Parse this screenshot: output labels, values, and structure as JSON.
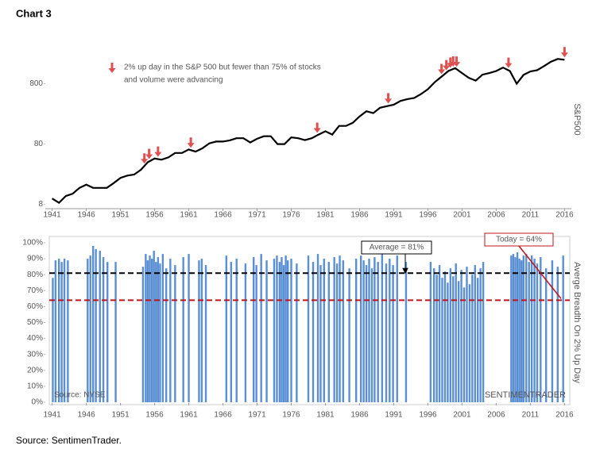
{
  "title": "Chart 3",
  "source": "Source: SentimenTrader.",
  "chart_data": [
    {
      "type": "line",
      "y_label": "S&P500",
      "log_scale": true,
      "color": "#000000",
      "legend_lines": [
        "2% up day in the S&P 500 but fewer than 75% of stocks",
        "and volume were advancing"
      ],
      "marker_color": "#e05050",
      "x": [
        1941,
        1942,
        1943,
        1944,
        1945,
        1946,
        1947,
        1948,
        1949,
        1950,
        1951,
        1952,
        1953,
        1954,
        1955,
        1956,
        1957,
        1958,
        1959,
        1960,
        1961,
        1962,
        1963,
        1964,
        1965,
        1966,
        1967,
        1968,
        1969,
        1970,
        1971,
        1972,
        1973,
        1974,
        1975,
        1976,
        1977,
        1978,
        1979,
        1980,
        1981,
        1982,
        1983,
        1984,
        1985,
        1986,
        1987,
        1988,
        1989,
        1990,
        1991,
        1992,
        1993,
        1994,
        1995,
        1996,
        1997,
        1998,
        1999,
        2000,
        2001,
        2002,
        2003,
        2004,
        2005,
        2006,
        2007,
        2008,
        2009,
        2010,
        2011,
        2012,
        2013,
        2014,
        2015,
        2016
      ],
      "values": [
        10,
        8.5,
        11,
        12,
        15,
        17,
        15,
        15,
        15,
        18,
        22,
        24,
        25,
        30,
        40,
        46,
        44,
        48,
        57,
        57,
        65,
        60,
        68,
        82,
        88,
        88,
        92,
        100,
        100,
        85,
        98,
        108,
        108,
        80,
        80,
        103,
        100,
        93,
        100,
        115,
        130,
        115,
        160,
        160,
        180,
        230,
        280,
        260,
        320,
        340,
        360,
        415,
        445,
        465,
        540,
        650,
        850,
        1050,
        1300,
        1450,
        1200,
        1000,
        900,
        1130,
        1200,
        1300,
        1480,
        1300,
        800,
        1120,
        1280,
        1340,
        1570,
        1850,
        2060,
        2000
      ],
      "markers": [
        1954.5,
        1955.2,
        1956.5,
        1961.3,
        1979.8,
        1990.2,
        1998.0,
        1998.7,
        1999.3,
        1999.7,
        2000.2,
        2007.8,
        2016.0
      ],
      "xlim": [
        1940,
        2017
      ],
      "xticks": [
        1941,
        1946,
        1951,
        1956,
        1961,
        1966,
        1971,
        1976,
        1981,
        1986,
        1991,
        1996,
        2001,
        2006,
        2011,
        2016
      ],
      "ylim": [
        7,
        6000
      ],
      "yticks": [
        8,
        80,
        800
      ]
    },
    {
      "type": "bar",
      "y_label": "Averge Breadth On 2% Up Day",
      "color": "#5b8fd4",
      "source_note": "Source: NYSE",
      "brand": "SENTIMENTRADER",
      "x": [
        1941.1,
        1941.5,
        1942.0,
        1942.4,
        1942.8,
        1943.3,
        1946.2,
        1946.6,
        1947.0,
        1947.4,
        1948.0,
        1948.5,
        1949.1,
        1950.3,
        1954.3,
        1954.7,
        1955.0,
        1955.3,
        1955.6,
        1955.9,
        1956.2,
        1956.5,
        1956.8,
        1957.2,
        1957.7,
        1958.3,
        1959.0,
        1960.2,
        1961.0,
        1962.5,
        1962.9,
        1963.5,
        1966.5,
        1967.2,
        1968.0,
        1969.3,
        1970.5,
        1970.9,
        1971.6,
        1972.4,
        1973.5,
        1973.9,
        1974.3,
        1974.6,
        1974.9,
        1975.2,
        1975.5,
        1976.0,
        1976.8,
        1978.5,
        1979.2,
        1979.9,
        1980.3,
        1980.8,
        1981.5,
        1982.3,
        1982.7,
        1983.1,
        1983.6,
        1984.5,
        1985.5,
        1986.2,
        1986.6,
        1987.0,
        1987.4,
        1987.8,
        1988.2,
        1988.7,
        1989.3,
        1989.9,
        1990.4,
        1990.9,
        1991.5,
        1992.8,
        1996.4,
        1996.9,
        1997.3,
        1997.7,
        1998.1,
        1998.5,
        1998.9,
        1999.3,
        1999.7,
        2000.1,
        2000.5,
        2000.9,
        2001.3,
        2001.7,
        2002.1,
        2002.5,
        2002.9,
        2003.3,
        2003.7,
        2004.1,
        2008.2,
        2008.5,
        2008.8,
        2009.1,
        2009.4,
        2009.7,
        2010.0,
        2010.4,
        2010.8,
        2011.2,
        2011.6,
        2012.0,
        2012.5,
        2013.3,
        2014.2,
        2015.0,
        2015.8
      ],
      "values": [
        78,
        89,
        90,
        88,
        90,
        89,
        90,
        92,
        98,
        96,
        95,
        91,
        88,
        88,
        85,
        93,
        89,
        92,
        90,
        95,
        88,
        91,
        87,
        93,
        84,
        90,
        86,
        91,
        93,
        89,
        90,
        86,
        92,
        88,
        90,
        87,
        91,
        86,
        93,
        89,
        90,
        92,
        88,
        91,
        86,
        92,
        89,
        90,
        87,
        92,
        88,
        93,
        86,
        90,
        88,
        91,
        87,
        92,
        89,
        84,
        90,
        92,
        89,
        86,
        90,
        84,
        91,
        88,
        93,
        87,
        90,
        86,
        92,
        88,
        88,
        84,
        80,
        86,
        78,
        82,
        75,
        84,
        79,
        87,
        76,
        83,
        72,
        85,
        74,
        80,
        86,
        78,
        84,
        88,
        92,
        93,
        91,
        94,
        90,
        89,
        92,
        93,
        88,
        92,
        90,
        87,
        91,
        84,
        89,
        85,
        92
      ],
      "hlines": [
        {
          "value": 81,
          "label": "Average = 81%",
          "color": "#000000"
        },
        {
          "value": 64,
          "label": "Today = 64%",
          "color": "#c0141c"
        }
      ],
      "xlim": [
        1940,
        2017
      ],
      "xticks": [
        1941,
        1946,
        1951,
        1956,
        1961,
        1966,
        1971,
        1976,
        1981,
        1986,
        1991,
        1996,
        2001,
        2006,
        2011,
        2016
      ],
      "ylim": [
        0,
        100
      ],
      "yticks": [
        {
          "value": 0,
          "label": "0%"
        },
        {
          "value": 10,
          "label": "10%"
        },
        {
          "value": 20,
          "label": "20%"
        },
        {
          "value": 30,
          "label": "30%"
        },
        {
          "value": 40,
          "label": "40%"
        },
        {
          "value": 50,
          "label": "50%"
        },
        {
          "value": 60,
          "label": "60%"
        },
        {
          "value": 70,
          "label": "70%"
        },
        {
          "value": 80,
          "label": "80%"
        },
        {
          "value": 90,
          "label": "90%"
        },
        {
          "value": 100,
          "label": "100%"
        }
      ]
    }
  ]
}
